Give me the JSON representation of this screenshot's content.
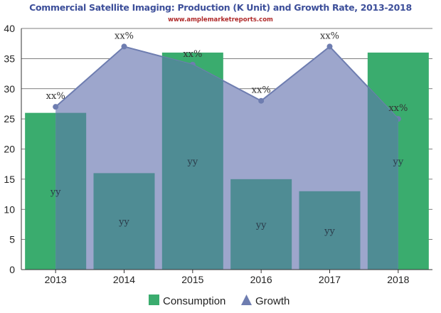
{
  "chart_data": {
    "type": "bar",
    "title": "Commercial Satellite Imaging: Production (K Unit) and Growth Rate, 2013-2018",
    "subtitle": "www.amplemarketreports.com",
    "categories": [
      "2013",
      "2014",
      "2015",
      "2016",
      "2017",
      "2018"
    ],
    "ylim": [
      0,
      40
    ],
    "yticks": [
      0,
      5,
      10,
      15,
      20,
      25,
      30,
      35,
      40
    ],
    "grid": true,
    "legend_position": "bottom",
    "series": [
      {
        "name": "Consumption",
        "type": "bar",
        "color": "#3aac6e",
        "values": [
          26,
          16,
          36,
          15,
          13,
          36
        ],
        "labels": [
          "yy",
          "yy",
          "yy",
          "yy",
          "yy",
          "yy"
        ]
      },
      {
        "name": "Growth",
        "type": "area",
        "color": "#6e7db0",
        "fill": "#9da6cc",
        "values": [
          27,
          37,
          34,
          28,
          37,
          25
        ],
        "labels": [
          "xx%",
          "xx%",
          "xx%",
          "xx%",
          "xx%",
          "xx%"
        ]
      }
    ]
  },
  "colors": {
    "title": "#3d4f9a",
    "subtitle": "#b02a2a",
    "bar_overlap": "#4f8c94"
  }
}
